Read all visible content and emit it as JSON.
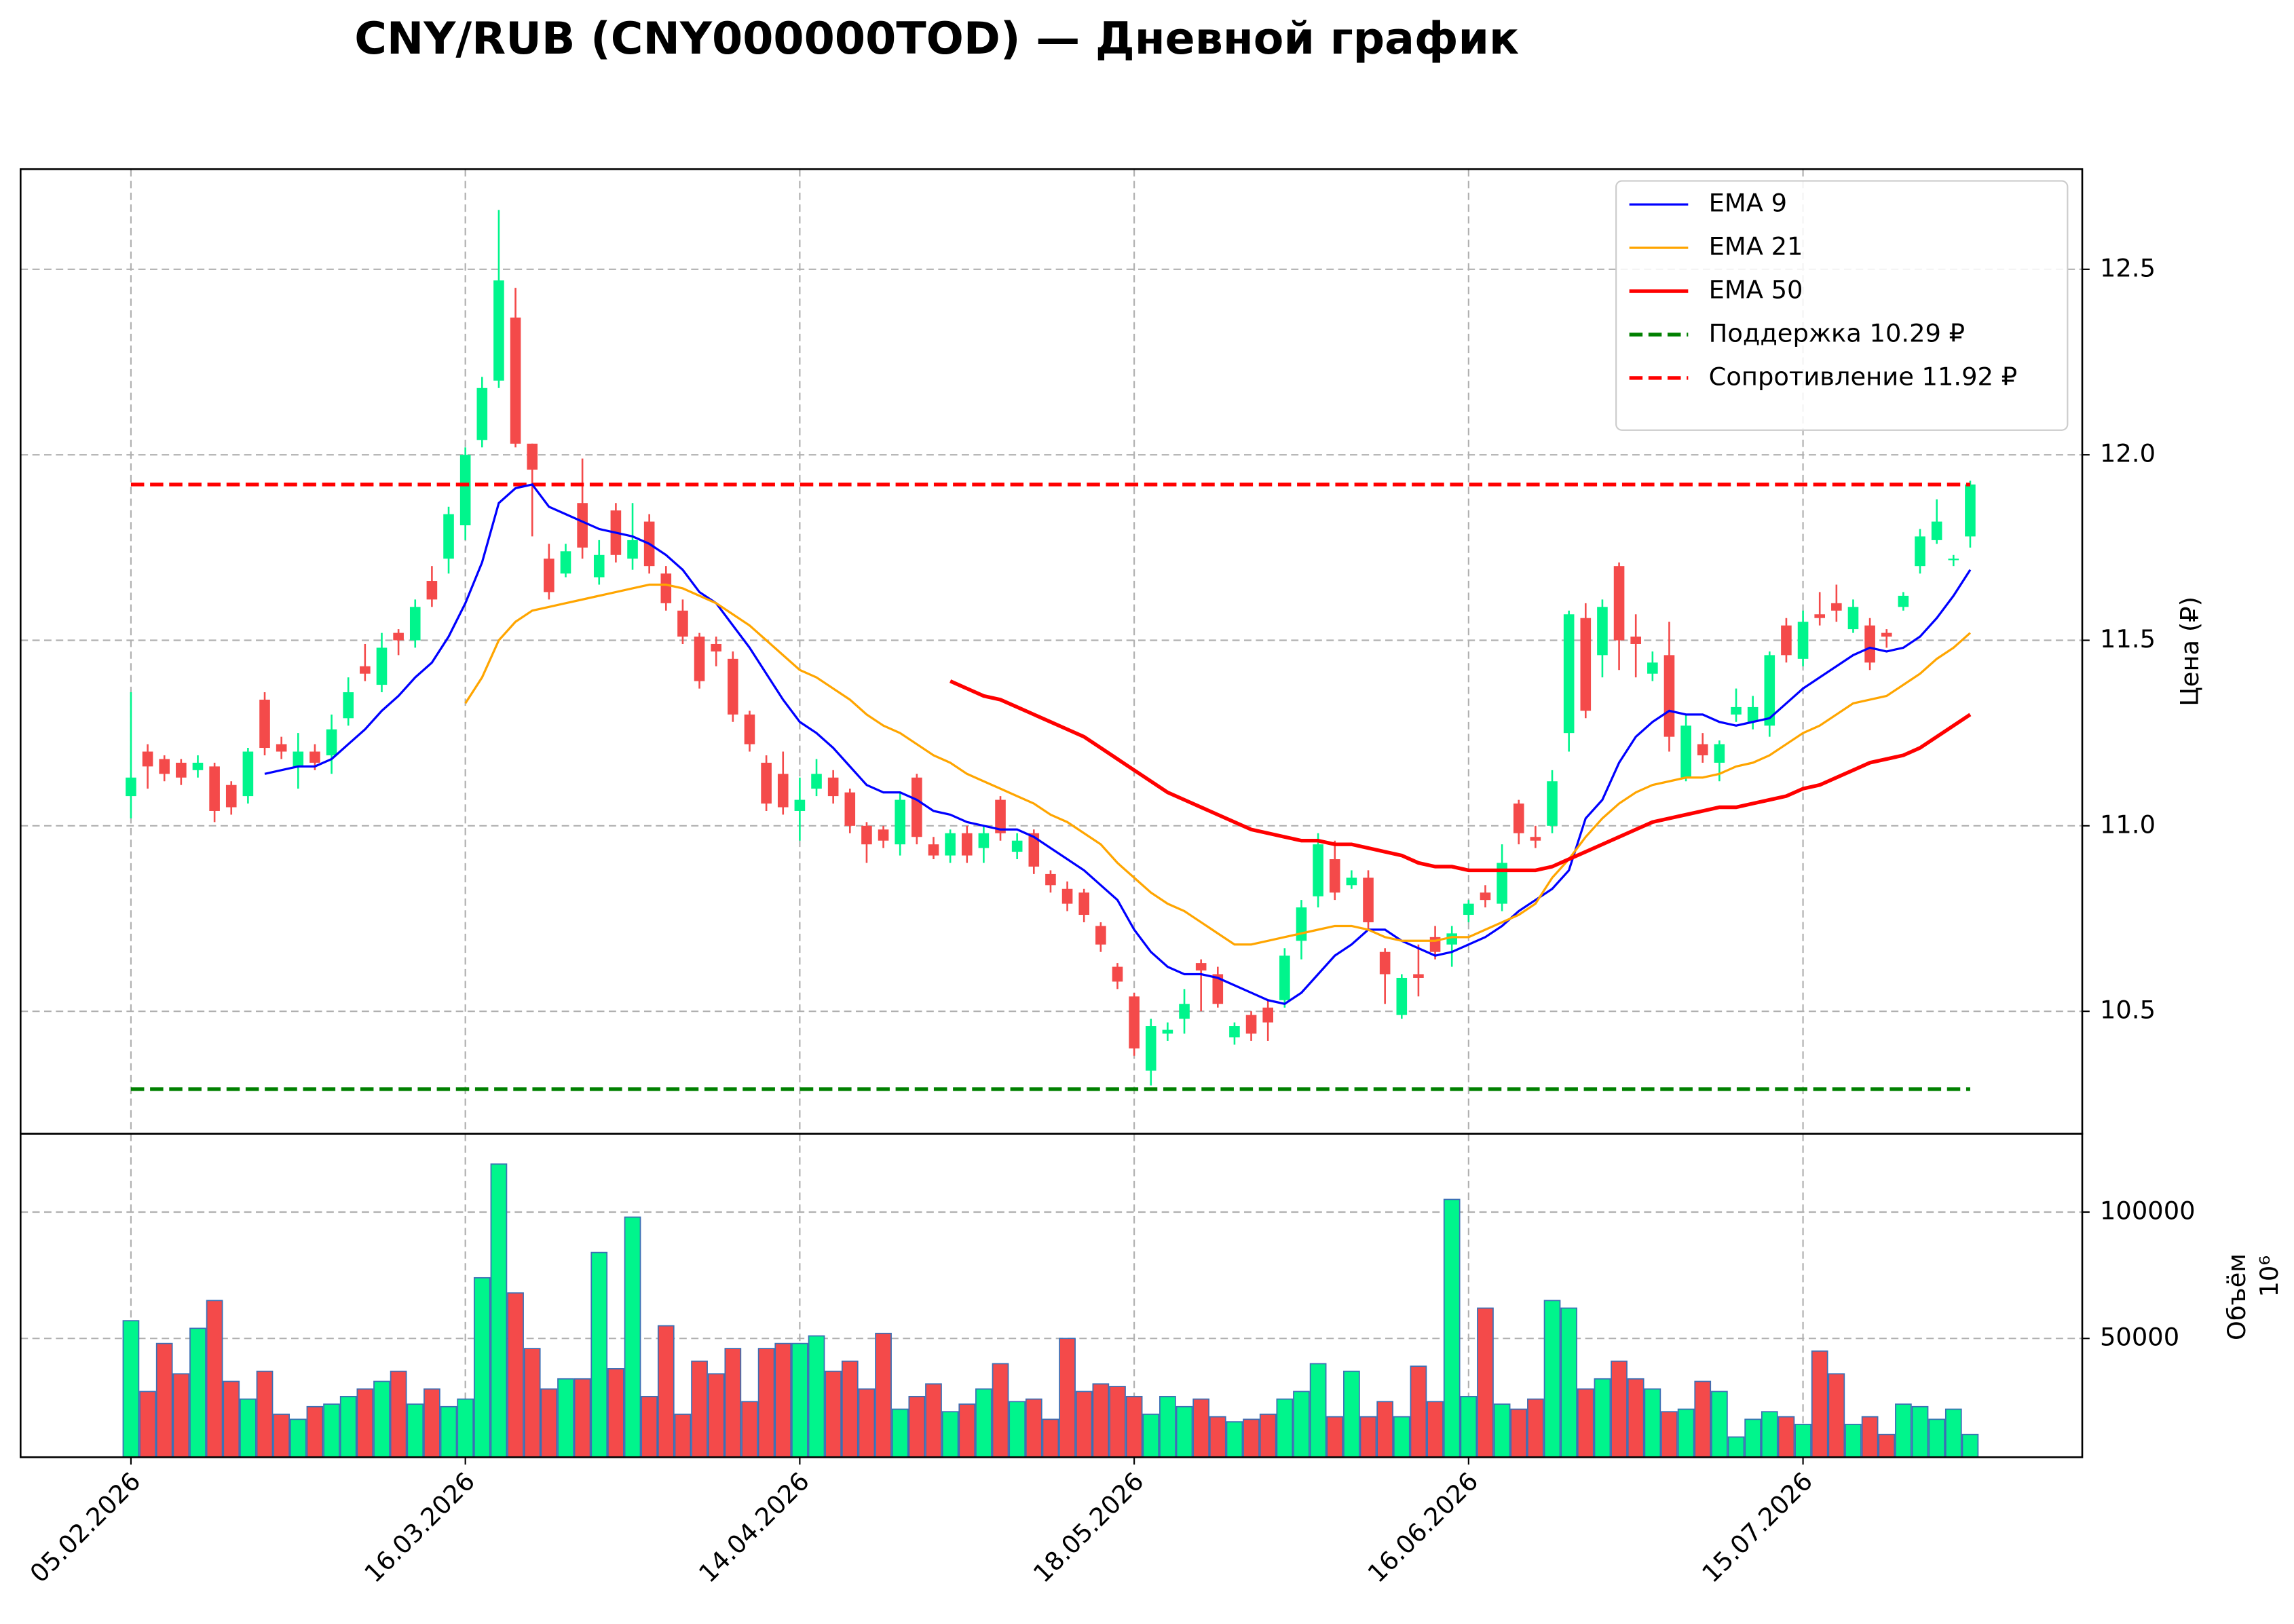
{
  "chart_data": [
    {
      "type": "candlestick",
      "title": "CNY/RUB (CNY000000TOD) — Дневной график",
      "ylabel": "Цена (₽)",
      "xlim": [
        -6.6,
        116.7
      ],
      "ylim": [
        10.17,
        12.77
      ],
      "yticks": [
        10.5,
        {
          "value": 11,
          "label": "11.0"
        },
        11.5,
        {
          "value": 12,
          "label": "12.0"
        },
        12.5
      ],
      "grid": true,
      "legend": "upper right",
      "up_color": "#00f58c",
      "down_color": "#f44a4a",
      "open": [
        11.08,
        11.2,
        11.18,
        11.17,
        11.15,
        11.16,
        11.11,
        11.08,
        11.34,
        11.22,
        11.16,
        11.2,
        11.19,
        11.29,
        11.43,
        11.38,
        11.52,
        11.5,
        11.66,
        11.72,
        11.81,
        12.04,
        12.2,
        12.37,
        12.03,
        11.72,
        11.68,
        11.87,
        11.67,
        11.85,
        11.72,
        11.82,
        11.68,
        11.58,
        11.51,
        11.49,
        11.45,
        11.3,
        11.17,
        11.14,
        11.04,
        11.1,
        11.13,
        11.09,
        11.0,
        10.99,
        10.95,
        11.13,
        10.95,
        10.92,
        10.98,
        10.94,
        11.07,
        10.93,
        10.98,
        10.87,
        10.83,
        10.82,
        10.73,
        10.62,
        10.54,
        10.34,
        10.44,
        10.48,
        10.63,
        10.6,
        10.43,
        10.49,
        10.51,
        10.53,
        10.69,
        10.81,
        10.91,
        10.84,
        10.86,
        10.66,
        10.49,
        10.6,
        10.7,
        10.68,
        10.76,
        10.82,
        10.79,
        11.06,
        10.97,
        11.0,
        11.25,
        11.56,
        11.46,
        11.7,
        11.51,
        11.41,
        11.46,
        11.13,
        11.22,
        11.17,
        11.3,
        11.28,
        11.27,
        11.54,
        11.45,
        11.57,
        11.6,
        11.53,
        11.54,
        11.52,
        11.59,
        11.7,
        11.77,
        11.72,
        11.78
      ],
      "high": [
        11.36,
        11.22,
        11.19,
        11.18,
        11.19,
        11.17,
        11.12,
        11.21,
        11.36,
        11.24,
        11.25,
        11.22,
        11.3,
        11.4,
        11.49,
        11.52,
        11.53,
        11.61,
        11.7,
        11.86,
        12.02,
        12.21,
        12.66,
        12.45,
        12.03,
        11.76,
        11.76,
        11.99,
        11.77,
        11.87,
        11.87,
        11.84,
        11.7,
        11.61,
        11.52,
        11.51,
        11.47,
        11.31,
        11.19,
        11.2,
        11.13,
        11.18,
        11.15,
        11.1,
        11.01,
        11.0,
        11.09,
        11.14,
        10.97,
        10.99,
        11.0,
        11.0,
        11.08,
        10.98,
        10.99,
        10.88,
        10.85,
        10.83,
        10.74,
        10.63,
        10.55,
        10.48,
        10.47,
        10.56,
        10.64,
        10.62,
        10.47,
        10.5,
        10.53,
        10.67,
        10.8,
        10.98,
        10.96,
        10.88,
        10.88,
        10.67,
        10.6,
        10.68,
        10.73,
        10.73,
        10.8,
        10.84,
        10.95,
        11.07,
        11.0,
        11.15,
        11.58,
        11.6,
        11.61,
        11.71,
        11.57,
        11.47,
        11.55,
        11.3,
        11.25,
        11.23,
        11.37,
        11.35,
        11.47,
        11.56,
        11.58,
        11.63,
        11.65,
        11.61,
        11.56,
        11.53,
        11.63,
        11.8,
        11.88,
        11.73,
        11.93
      ],
      "low": [
        11.02,
        11.1,
        11.12,
        11.11,
        11.13,
        11.01,
        11.03,
        11.06,
        11.19,
        11.18,
        11.1,
        11.15,
        11.14,
        11.27,
        11.39,
        11.36,
        11.46,
        11.48,
        11.59,
        11.68,
        11.77,
        12.02,
        12.18,
        12.02,
        11.78,
        11.61,
        11.67,
        11.72,
        11.65,
        11.71,
        11.69,
        11.68,
        11.58,
        11.49,
        11.37,
        11.43,
        11.28,
        11.2,
        11.04,
        11.03,
        10.96,
        11.08,
        11.06,
        10.98,
        10.9,
        10.94,
        10.92,
        10.95,
        10.91,
        10.9,
        10.9,
        10.9,
        10.96,
        10.91,
        10.87,
        10.82,
        10.77,
        10.74,
        10.66,
        10.56,
        10.38,
        10.3,
        10.42,
        10.44,
        10.5,
        10.51,
        10.41,
        10.42,
        10.42,
        10.51,
        10.64,
        10.78,
        10.8,
        10.83,
        10.72,
        10.52,
        10.48,
        10.54,
        10.64,
        10.62,
        10.74,
        10.78,
        10.77,
        10.95,
        10.94,
        10.98,
        11.2,
        11.29,
        11.4,
        11.42,
        11.4,
        11.39,
        11.2,
        11.12,
        11.17,
        11.12,
        11.28,
        11.26,
        11.24,
        11.44,
        11.43,
        11.54,
        11.55,
        11.52,
        11.42,
        11.48,
        11.58,
        11.68,
        11.76,
        11.7,
        11.75
      ],
      "close": [
        11.13,
        11.16,
        11.14,
        11.13,
        11.17,
        11.04,
        11.05,
        11.2,
        11.21,
        11.2,
        11.2,
        11.17,
        11.26,
        11.36,
        11.41,
        11.48,
        11.5,
        11.59,
        11.61,
        11.84,
        12.0,
        12.18,
        12.47,
        12.03,
        11.96,
        11.63,
        11.74,
        11.75,
        11.73,
        11.73,
        11.77,
        11.7,
        11.6,
        11.51,
        11.39,
        11.47,
        11.3,
        11.22,
        11.06,
        11.05,
        11.07,
        11.14,
        11.08,
        11.0,
        10.95,
        10.96,
        11.07,
        10.97,
        10.92,
        10.98,
        10.92,
        10.98,
        10.98,
        10.96,
        10.89,
        10.84,
        10.79,
        10.76,
        10.68,
        10.58,
        10.4,
        10.46,
        10.45,
        10.52,
        10.61,
        10.52,
        10.46,
        10.44,
        10.47,
        10.65,
        10.78,
        10.95,
        10.82,
        10.86,
        10.74,
        10.6,
        10.59,
        10.59,
        10.66,
        10.71,
        10.79,
        10.8,
        10.9,
        10.98,
        10.96,
        11.12,
        11.57,
        11.31,
        11.59,
        11.5,
        11.49,
        11.44,
        11.24,
        11.27,
        11.19,
        11.22,
        11.32,
        11.32,
        11.46,
        11.46,
        11.55,
        11.56,
        11.58,
        11.59,
        11.44,
        11.51,
        11.62,
        11.78,
        11.82,
        11.72,
        11.92
      ],
      "lines": [
        {
          "name": "EMA 9",
          "color": "#0000ff",
          "width": 1.5,
          "values": [
            null,
            null,
            null,
            null,
            null,
            null,
            null,
            null,
            11.14,
            11.15,
            11.16,
            11.16,
            11.18,
            11.22,
            11.26,
            11.31,
            11.35,
            11.4,
            11.44,
            11.51,
            11.6,
            11.71,
            11.87,
            11.91,
            11.92,
            11.86,
            11.84,
            11.82,
            11.8,
            11.79,
            11.78,
            11.76,
            11.73,
            11.69,
            11.63,
            11.6,
            11.54,
            11.48,
            11.41,
            11.34,
            11.28,
            11.25,
            11.21,
            11.16,
            11.11,
            11.09,
            11.09,
            11.07,
            11.04,
            11.03,
            11.01,
            11.0,
            10.99,
            10.99,
            10.97,
            10.94,
            10.91,
            10.88,
            10.84,
            10.8,
            10.72,
            10.66,
            10.62,
            10.6,
            10.6,
            10.59,
            10.57,
            10.55,
            10.53,
            10.52,
            10.55,
            10.6,
            10.65,
            10.68,
            10.72,
            10.72,
            10.69,
            10.67,
            10.65,
            10.66,
            10.68,
            10.7,
            10.73,
            10.77,
            10.8,
            10.83,
            10.88,
            11.02,
            11.07,
            11.17,
            11.24,
            11.28,
            11.31,
            11.3,
            11.3,
            11.28,
            11.27,
            11.28,
            11.29,
            11.33,
            11.37,
            11.4,
            11.43,
            11.46,
            11.48,
            11.47,
            11.48,
            11.51,
            11.56,
            11.62,
            11.69
          ]
        },
        {
          "name": "EMA 21",
          "color": "#ffa500",
          "width": 1.5,
          "values": [
            null,
            null,
            null,
            null,
            null,
            null,
            null,
            null,
            null,
            null,
            null,
            null,
            null,
            null,
            null,
            null,
            null,
            null,
            null,
            null,
            11.33,
            11.4,
            11.5,
            11.55,
            11.58,
            11.59,
            11.6,
            11.61,
            11.62,
            11.63,
            11.64,
            11.65,
            11.65,
            11.64,
            11.62,
            11.6,
            11.57,
            11.54,
            11.5,
            11.46,
            11.42,
            11.4,
            11.37,
            11.34,
            11.3,
            11.27,
            11.25,
            11.22,
            11.19,
            11.17,
            11.14,
            11.12,
            11.1,
            11.08,
            11.06,
            11.03,
            11.01,
            10.98,
            10.95,
            10.9,
            10.86,
            10.82,
            10.79,
            10.77,
            10.74,
            10.71,
            10.68,
            10.68,
            10.69,
            10.7,
            10.71,
            10.72,
            10.73,
            10.73,
            10.72,
            10.7,
            10.69,
            10.69,
            10.69,
            10.7,
            10.7,
            10.72,
            10.74,
            10.76,
            10.79,
            10.86,
            10.91,
            10.97,
            11.02,
            11.06,
            11.09,
            11.11,
            11.12,
            11.13,
            11.13,
            11.14,
            11.16,
            11.17,
            11.19,
            11.22,
            11.25,
            11.27,
            11.3,
            11.33,
            11.34,
            11.35,
            11.38,
            11.41,
            11.45,
            11.48,
            11.52
          ]
        },
        {
          "name": "EMA 50",
          "color": "#ff0000",
          "width": 2.5,
          "values": [
            null,
            null,
            null,
            null,
            null,
            null,
            null,
            null,
            null,
            null,
            null,
            null,
            null,
            null,
            null,
            null,
            null,
            null,
            null,
            null,
            null,
            null,
            null,
            null,
            null,
            null,
            null,
            null,
            null,
            null,
            null,
            null,
            null,
            null,
            null,
            null,
            null,
            null,
            null,
            null,
            null,
            null,
            null,
            null,
            null,
            null,
            null,
            null,
            null,
            11.39,
            11.37,
            11.35,
            11.34,
            11.32,
            11.3,
            11.28,
            11.26,
            11.24,
            11.21,
            11.18,
            11.15,
            11.12,
            11.09,
            11.07,
            11.05,
            11.03,
            11.01,
            10.99,
            10.98,
            10.97,
            10.96,
            10.96,
            10.95,
            10.95,
            10.94,
            10.93,
            10.92,
            10.9,
            10.89,
            10.89,
            10.88,
            10.88,
            10.88,
            10.88,
            10.88,
            10.89,
            10.91,
            10.93,
            10.95,
            10.97,
            10.99,
            11.01,
            11.02,
            11.03,
            11.04,
            11.05,
            11.05,
            11.06,
            11.07,
            11.08,
            11.1,
            11.11,
            11.13,
            11.15,
            11.17,
            11.18,
            11.19,
            11.21,
            11.24,
            11.27,
            11.3
          ]
        }
      ],
      "hlines": [
        {
          "name": "Поддержка 10.29 ₽",
          "color": "#008000",
          "value": 10.29
        },
        {
          "name": "Сопротивление 11.92 ₽",
          "color": "#ff0000",
          "value": 11.92
        }
      ]
    },
    {
      "type": "bar",
      "ylabel": "Объём",
      "offset_label": "10⁶",
      "xlim": [
        -6.6,
        116.7
      ],
      "ylim": [
        3000,
        131000
      ],
      "yticks": [
        50000,
        100000
      ],
      "grid": true,
      "edge_color": "#3b6fb5",
      "categories": [
        "05.02.2026",
        null,
        null,
        null,
        null,
        null,
        null,
        null,
        null,
        null,
        null,
        null,
        null,
        null,
        null,
        null,
        null,
        null,
        null,
        null,
        "16.03.2026",
        null,
        null,
        null,
        null,
        null,
        null,
        null,
        null,
        null,
        null,
        null,
        null,
        null,
        null,
        null,
        null,
        null,
        null,
        null,
        "14.04.2026",
        null,
        null,
        null,
        null,
        null,
        null,
        null,
        null,
        null,
        null,
        null,
        null,
        null,
        null,
        null,
        null,
        null,
        null,
        null,
        "18.05.2026",
        null,
        null,
        null,
        null,
        null,
        null,
        null,
        null,
        null,
        null,
        null,
        null,
        null,
        null,
        null,
        null,
        null,
        null,
        null,
        "16.06.2026",
        null,
        null,
        null,
        null,
        null,
        null,
        null,
        null,
        null,
        null,
        null,
        null,
        null,
        null,
        null,
        null,
        null,
        null,
        null,
        "15.07.2026",
        null,
        null,
        null,
        null,
        null,
        null,
        null,
        null,
        null,
        null
      ],
      "values": [
        57000,
        29000,
        48000,
        36000,
        54000,
        65000,
        33000,
        26000,
        37000,
        20000,
        18000,
        23000,
        24000,
        27000,
        30000,
        33000,
        37000,
        24000,
        30000,
        23000,
        26000,
        74000,
        119000,
        68000,
        46000,
        30000,
        34000,
        34000,
        84000,
        38000,
        98000,
        27000,
        55000,
        20000,
        41000,
        36000,
        46000,
        25000,
        46000,
        48000,
        48000,
        51000,
        37000,
        41000,
        30000,
        52000,
        22000,
        27000,
        32000,
        21000,
        24000,
        30000,
        40000,
        25000,
        26000,
        18000,
        50000,
        29000,
        32000,
        31000,
        27000,
        20000,
        27000,
        23000,
        26000,
        19000,
        17000,
        18000,
        20000,
        26000,
        29000,
        40000,
        19000,
        37000,
        19000,
        25000,
        19000,
        39000,
        25000,
        105000,
        27000,
        62000,
        24000,
        22000,
        26000,
        65000,
        62000,
        30000,
        34000,
        41000,
        34000,
        30000,
        21000,
        22000,
        33000,
        29000,
        11000,
        18000,
        21000,
        19000,
        16000,
        45000,
        36000,
        16000,
        19000,
        12000,
        24000,
        23000,
        18000,
        22000,
        12000
      ]
    }
  ]
}
